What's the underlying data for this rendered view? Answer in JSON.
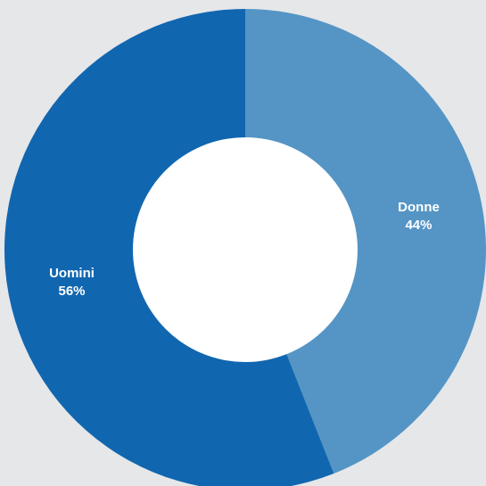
{
  "chart_data": {
    "type": "pie",
    "donut": true,
    "slices": [
      {
        "label": "Donne",
        "value": 44,
        "value_label": "44%",
        "color": "#5495c5"
      },
      {
        "label": "Uomini",
        "value": 56,
        "value_label": "56%",
        "color": "#1166b0"
      }
    ]
  },
  "colors": {
    "background": "#e6e7e9",
    "hole": "#ffffff"
  }
}
